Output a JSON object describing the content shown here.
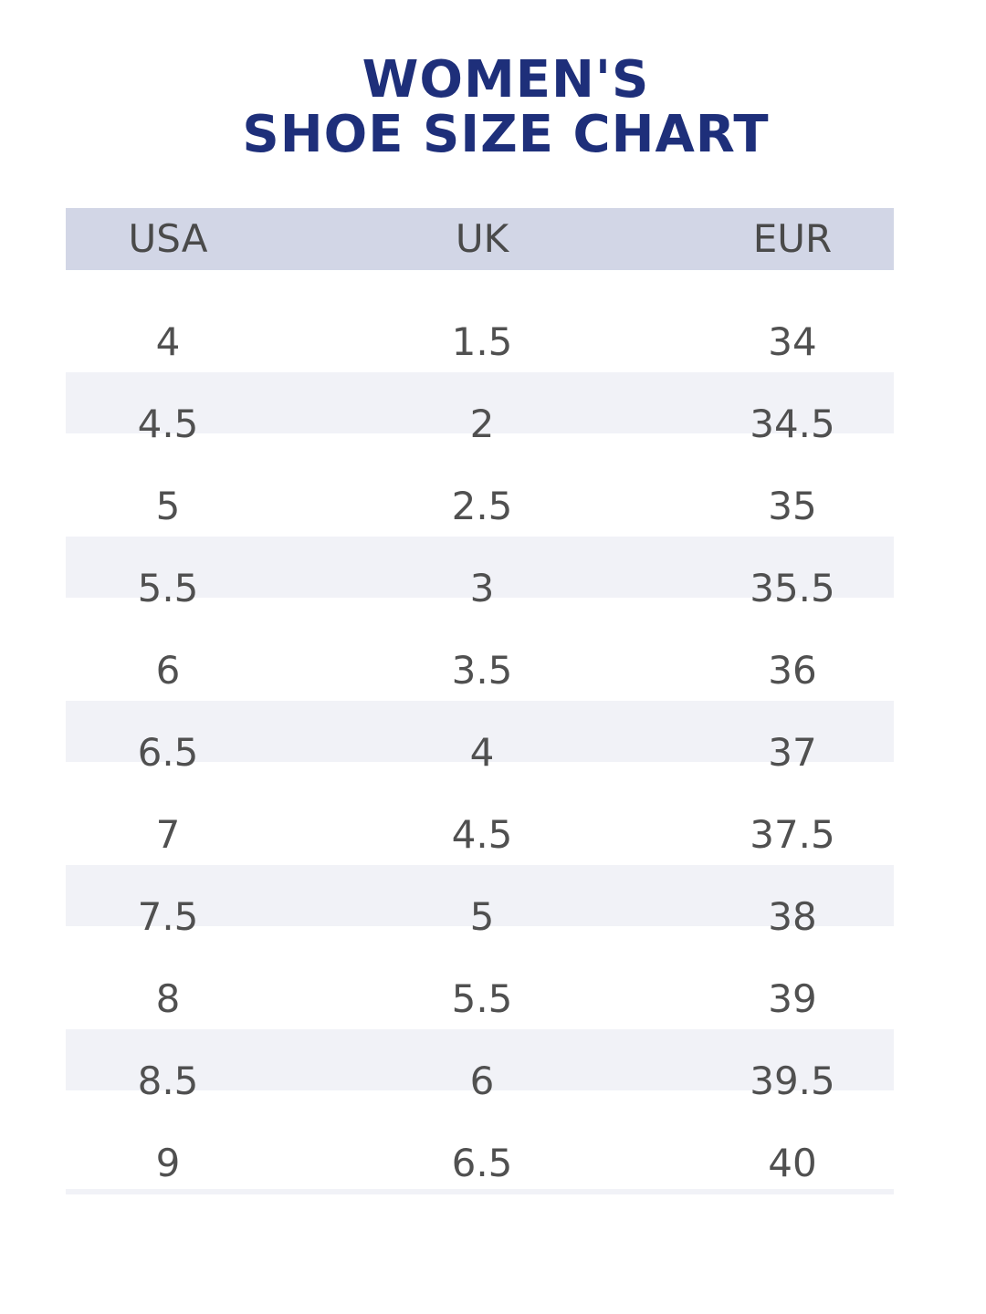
{
  "chart_data": {
    "type": "table",
    "title_lines": [
      "WOMEN'S",
      "SHOE SIZE CHART"
    ],
    "columns": [
      "USA",
      "UK",
      "EUR"
    ],
    "rows": [
      [
        "4",
        "1.5",
        "34"
      ],
      [
        "4.5",
        "2",
        "34.5"
      ],
      [
        "5",
        "2.5",
        "35"
      ],
      [
        "5.5",
        "3",
        "35.5"
      ],
      [
        "6",
        "3.5",
        "36"
      ],
      [
        "6.5",
        "4",
        "37"
      ],
      [
        "7",
        "4.5",
        "37.5"
      ],
      [
        "7.5",
        "5",
        "38"
      ],
      [
        "8",
        "5.5",
        "39"
      ],
      [
        "8.5",
        "6",
        "39.5"
      ],
      [
        "9",
        "6.5",
        "40"
      ]
    ]
  },
  "colors": {
    "title": "#1e2f7a",
    "header_band": "#d2d6e6",
    "row_band": "#f1f2f7",
    "text": "#505050"
  }
}
